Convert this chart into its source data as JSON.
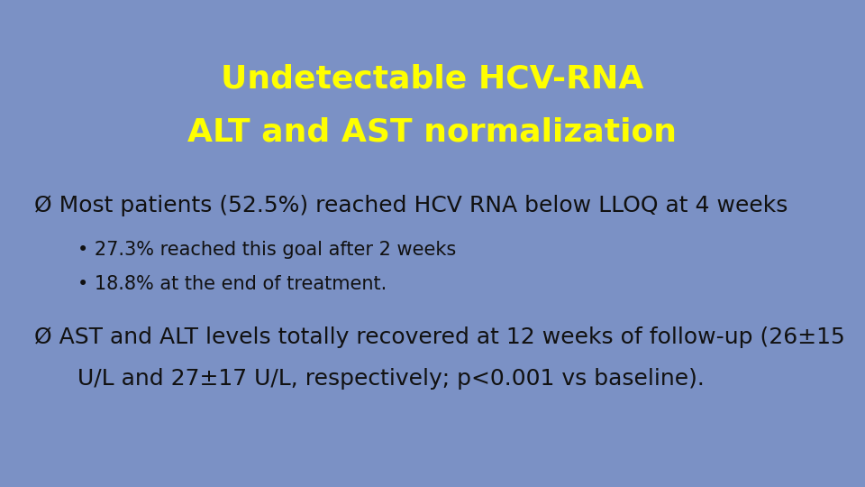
{
  "background_color": "#7b91c5",
  "title_line1": "Undetectable HCV-RNA",
  "title_line2": "ALT and AST normalization",
  "title_color": "#ffff00",
  "title_fontsize": 26,
  "title_fontweight": "bold",
  "body_color": "#111111",
  "bullet1_text": "Most patients (52.5%) reached HCV RNA below LLOQ at 4 weeks",
  "bullet1_fontsize": 18,
  "subbullet1": "27.3% reached this goal after 2 weeks",
  "subbullet2": "18.8% at the end of treatment.",
  "subbullet_fontsize": 15,
  "bullet2_line1": "AST and ALT levels totally recovered at 12 weeks of follow-up (26±15",
  "bullet2_line2": "U/L and 27±17 U/L, respectively; p<0.001 vs baseline).",
  "bullet2_fontsize": 18,
  "figsize": [
    9.6,
    5.4
  ],
  "dpi": 100
}
